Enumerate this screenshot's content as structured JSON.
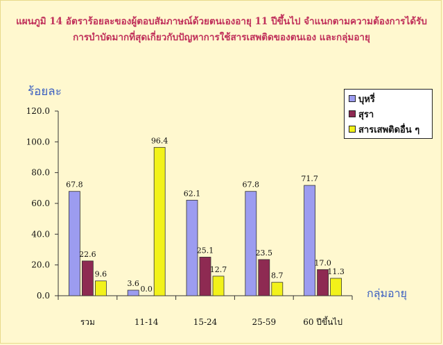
{
  "header": {
    "line1": "แผนภูมิ 14  อัตราร้อยละของผู้ตอบสัมภาษณ์ด้วยตนเองอายุ 11 ปีขึ้นไป จำแนกตามความต้องการได้รับ",
    "line2": "การบำบัดมากที่สุดเกี่ยวกับปัญหาการใช้สารเสพติดของตนเอง และกลุ่มอายุ"
  },
  "chart_data": {
    "type": "bar",
    "title": "แผนภูมิ 14  อัตราร้อยละของผู้ตอบสัมภาษณ์ด้วยตนเองอายุ 11 ปีขึ้นไป จำแนกตามความต้องการได้รับ การบำบัดมากที่สุดเกี่ยวกับปัญหาการใช้สารเสพติดของตนเอง และกลุ่มอายุ",
    "ylabel": "ร้อยละ",
    "xlabel": "กลุ่มอายุ",
    "categories": [
      "รวม",
      "11-14",
      "15-24",
      "25-59",
      "60 ปีขึ้นไป"
    ],
    "ylim": [
      0,
      120
    ],
    "yticks": [
      "0.0",
      "20.0",
      "40.0",
      "60.0",
      "80.0",
      "100.0",
      "120.0"
    ],
    "legend_position": "top-right",
    "grid": false,
    "series": [
      {
        "name": "บุหรี่",
        "color": "#9c9cf0",
        "values": [
          67.8,
          3.6,
          62.1,
          67.8,
          71.7
        ],
        "labels": [
          "67.8",
          "3.6",
          "62.1",
          "67.8",
          "71.7"
        ]
      },
      {
        "name": "สุรา",
        "color": "#8e2a52",
        "values": [
          22.6,
          0.0,
          25.1,
          23.5,
          17.0
        ],
        "labels": [
          "22.6",
          "0.0",
          "25.1",
          "23.5",
          "17.0"
        ]
      },
      {
        "name": "สารเสพติดอื่น ๆ",
        "color": "#f2f21a",
        "values": [
          9.6,
          96.4,
          12.7,
          8.7,
          11.3
        ],
        "labels": [
          "9.6",
          "96.4",
          "12.7",
          "8.7",
          "11.3"
        ]
      }
    ]
  }
}
